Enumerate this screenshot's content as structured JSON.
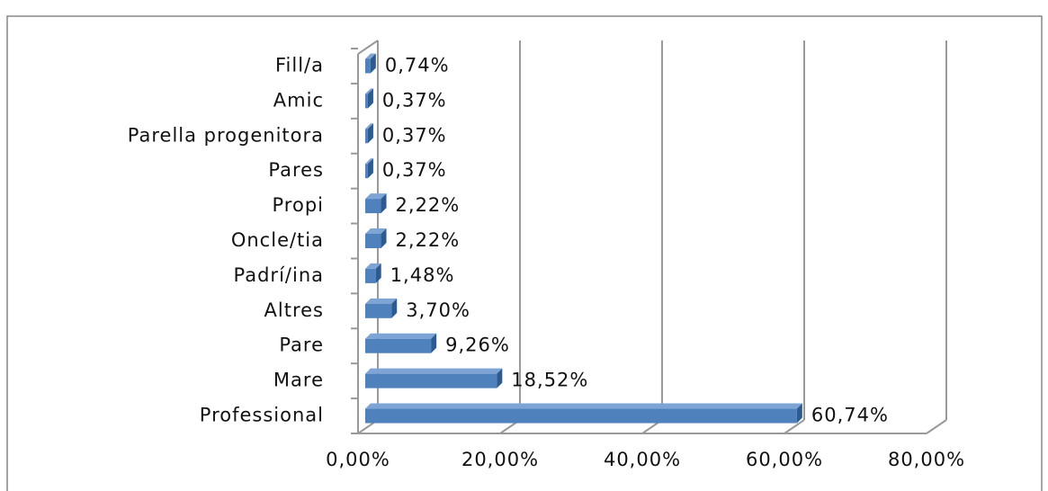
{
  "chart_data": {
    "type": "bar",
    "orientation": "horizontal",
    "categories": [
      "Fill/a",
      "Amic",
      "Parella progenitora",
      "Pares",
      "Propi",
      "Oncle/tia",
      "Padrí/ina",
      "Altres",
      "Pare",
      "Mare",
      "Professional"
    ],
    "values": [
      0.74,
      0.37,
      0.37,
      0.37,
      2.22,
      2.22,
      1.48,
      3.7,
      9.26,
      18.52,
      60.74
    ],
    "value_labels": [
      "0,74%",
      "0,37%",
      "0,37%",
      "0,37%",
      "2,22%",
      "2,22%",
      "1,48%",
      "3,70%",
      "9,26%",
      "18,52%",
      "60,74%"
    ],
    "color": "#4f81bd",
    "xlim": [
      0,
      80
    ],
    "xticks": [
      {
        "value": 0,
        "label": "0,00%"
      },
      {
        "value": 20,
        "label": "20,00%"
      },
      {
        "value": 40,
        "label": "40,00%"
      },
      {
        "value": 60,
        "label": "60,00%"
      },
      {
        "value": 80,
        "label": "80,00%"
      }
    ],
    "grid": true
  }
}
